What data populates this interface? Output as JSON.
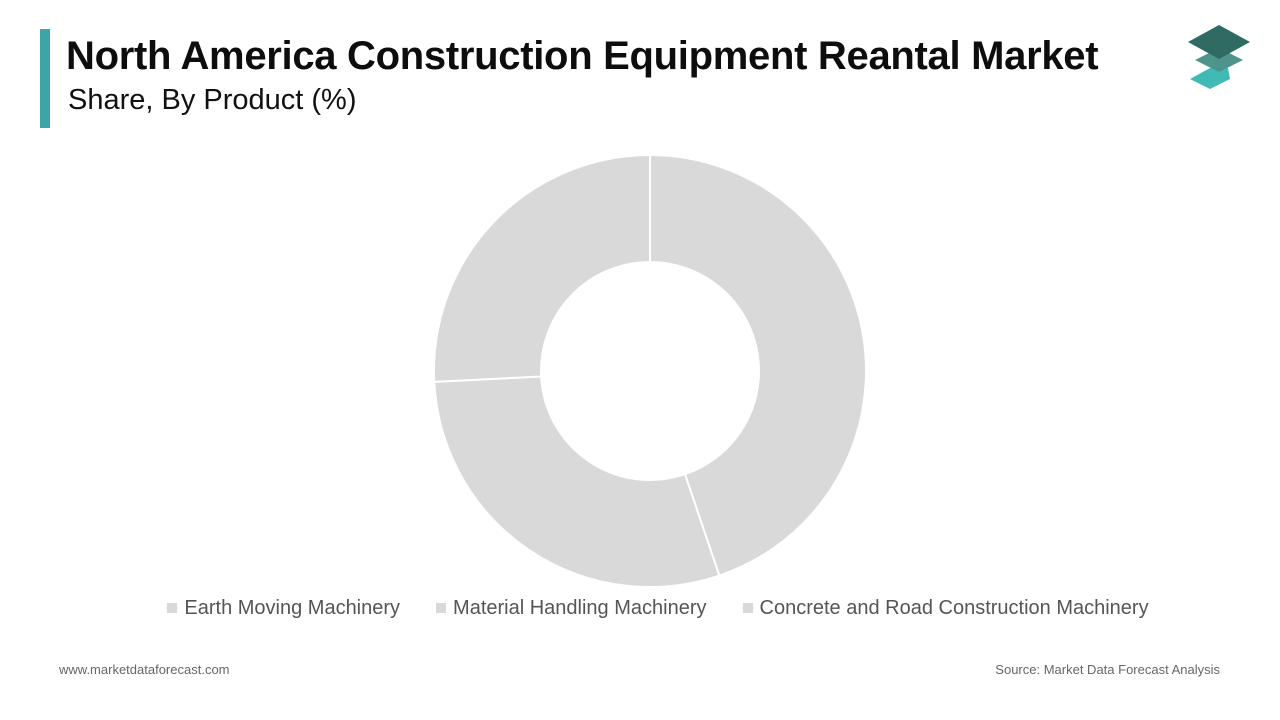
{
  "header": {
    "title": "North America Construction Equipment Reantal Market",
    "subtitle": "Share, By Product (%)"
  },
  "colors": {
    "accent": "#3aa6a5",
    "slice": "#d9d9d9",
    "legend_swatch": "#d9d9d9",
    "logo_dark": "#2f6b63",
    "logo_mid": "#4f948c",
    "logo_light": "#41b9b4"
  },
  "chart_data": {
    "type": "pie",
    "donut": true,
    "title": "North America Construction Equipment Reantal Market",
    "subtitle": "Share, By Product (%)",
    "categories": [
      "Earth Moving Machinery",
      "Material Handling Machinery",
      "Concrete and Road Construction Machinery"
    ],
    "values": [
      44.8,
      29.4,
      25.8
    ],
    "legend_position": "bottom",
    "show_data_labels": false
  },
  "footer": {
    "website": "www.marketdataforecast.com",
    "source": "Source: Market Data Forecast Analysis"
  },
  "icons": {
    "logo": "stacked-layers-logo-icon"
  }
}
